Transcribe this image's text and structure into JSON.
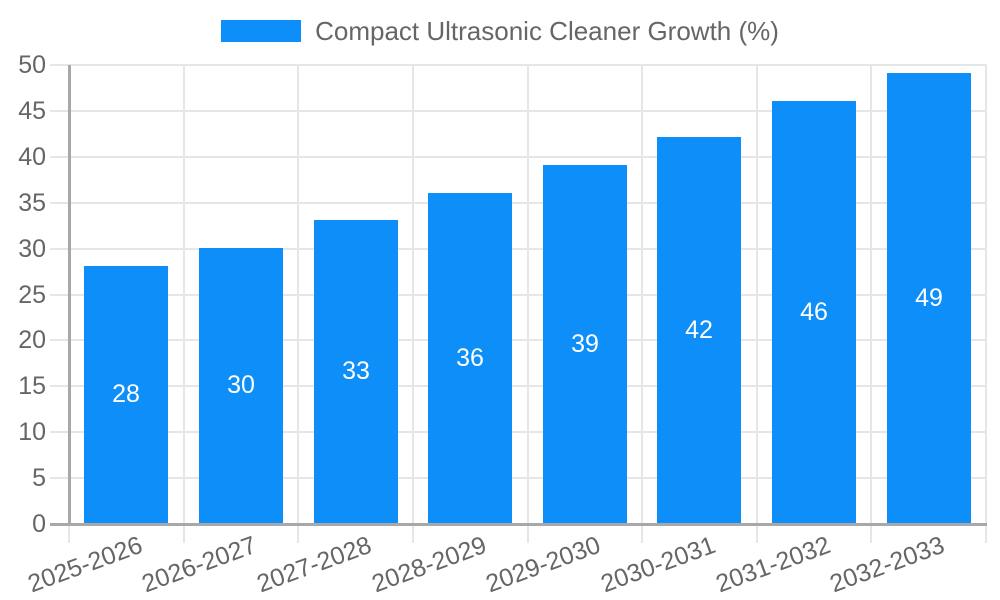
{
  "chart_data": {
    "type": "bar",
    "title": "Compact Ultrasonic Cleaner Growth (%)",
    "legend": {
      "position": "top",
      "label": "Compact Ultrasonic Cleaner Growth (%)"
    },
    "categories": [
      "2025-2026",
      "2026-2027",
      "2027-2028",
      "2028-2029",
      "2029-2030",
      "2030-2031",
      "2031-2032",
      "2032-2033"
    ],
    "values": [
      28,
      30,
      33,
      36,
      39,
      42,
      46,
      49
    ],
    "xlabel": "",
    "ylabel": "",
    "ylim": [
      0,
      50
    ],
    "yticks": [
      0,
      5,
      10,
      15,
      20,
      25,
      30,
      35,
      40,
      45,
      50
    ],
    "grid": true,
    "x_label_rotation_deg": -20,
    "bar_labels_shown": true,
    "colors": {
      "bar": "#0d8ef8",
      "bar_label": "#ffffff",
      "grid": "#e6e6e6",
      "axis": "#a8a8a8",
      "text": "#666666"
    }
  }
}
